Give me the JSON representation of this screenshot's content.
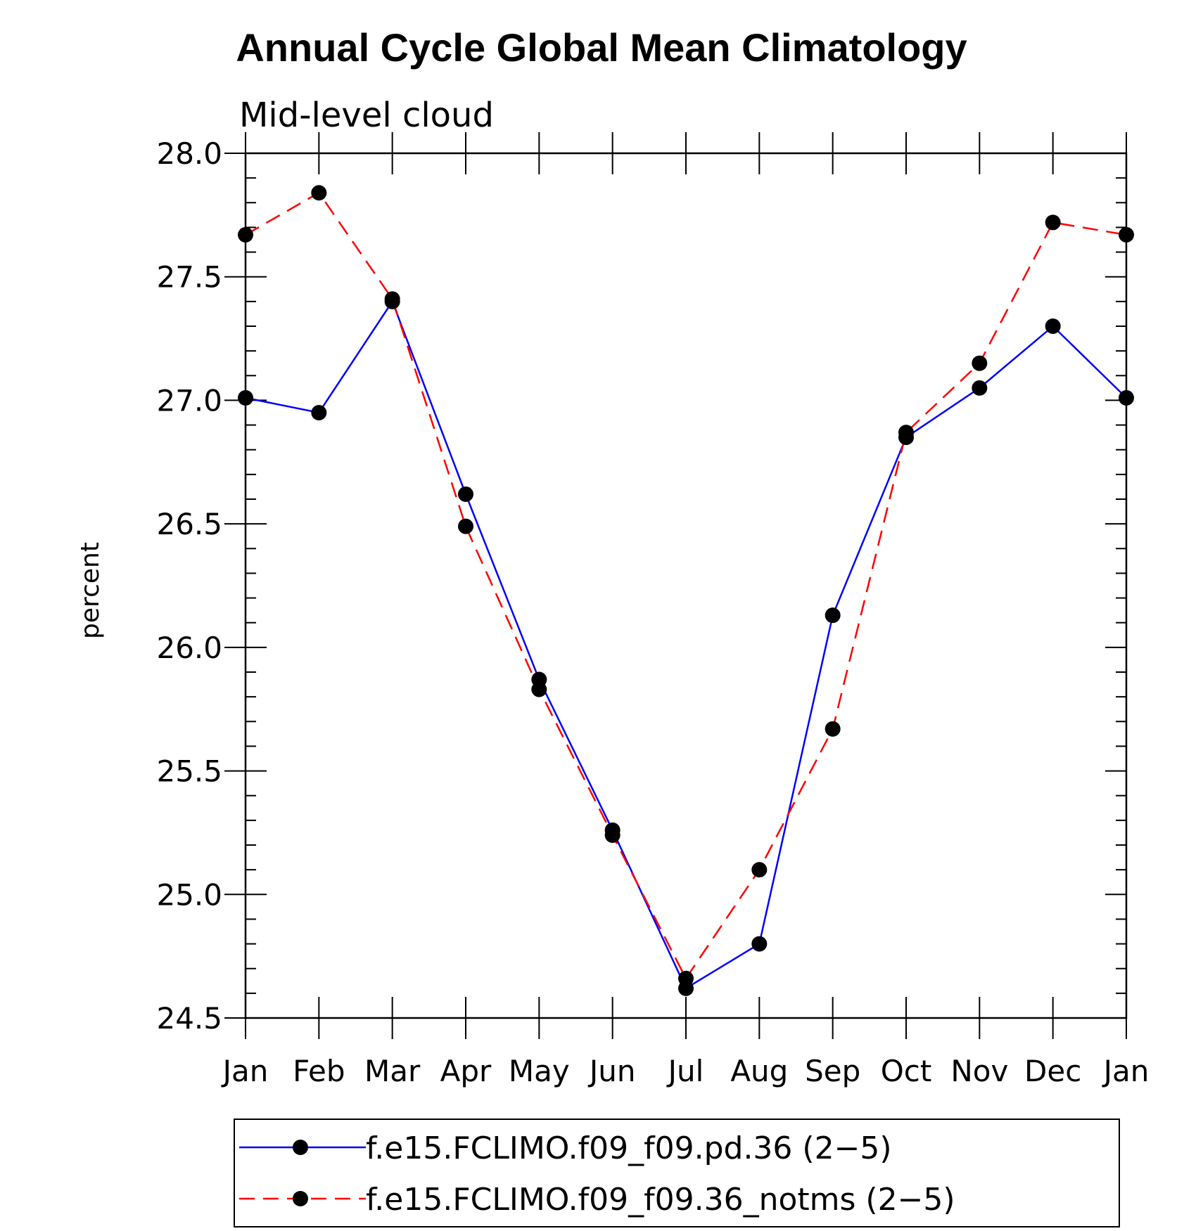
{
  "chart_data": {
    "type": "line",
    "title": "Annual Cycle Global Mean Climatology",
    "subtitle": "Mid-level cloud",
    "xlabel": "",
    "ylabel": "percent",
    "categories": [
      "Jan",
      "Feb",
      "Mar",
      "Apr",
      "May",
      "Jun",
      "Jul",
      "Aug",
      "Sep",
      "Oct",
      "Nov",
      "Dec",
      "Jan"
    ],
    "ylim": [
      24.5,
      28.0
    ],
    "yticks": [
      "24.5",
      "25.0",
      "25.5",
      "26.0",
      "26.5",
      "27.0",
      "27.5",
      "28.0"
    ],
    "series": [
      {
        "name": "f.e15.FCLIMO.f09_f09.pd.36 (2−5)",
        "color": "#0000ff",
        "style": "solid",
        "marker": "filled-circle",
        "values": [
          27.01,
          26.95,
          27.4,
          26.62,
          25.87,
          25.26,
          24.62,
          24.8,
          26.13,
          26.85,
          27.05,
          27.3,
          27.01
        ]
      },
      {
        "name": "f.e15.FCLIMO.f09_f09.36_notms (2−5)",
        "color": "#ff0000",
        "style": "dashed",
        "marker": "filled-circle",
        "values": [
          27.67,
          27.84,
          27.41,
          26.49,
          25.83,
          25.24,
          24.66,
          25.1,
          25.67,
          26.87,
          27.15,
          27.72,
          27.67
        ]
      }
    ],
    "legend_position": "bottom"
  }
}
